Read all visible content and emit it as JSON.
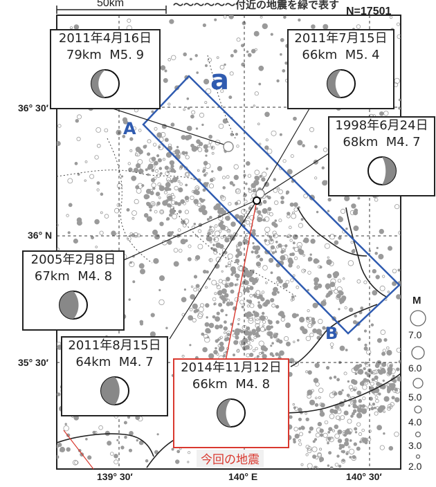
{
  "header": {
    "title": "〜〜〜〜〜〜付近の地震を緑で表す",
    "count": "N=17501",
    "scale_label": "50km"
  },
  "axes": {
    "lat_ticks": [
      "36° 30′",
      "36° N",
      "35° 30′"
    ],
    "lon_ticks": [
      "139° 30′",
      "140° E",
      "140° 30′"
    ]
  },
  "profile": {
    "area_label": "a",
    "start_label": "A",
    "end_label": "B"
  },
  "legend": {
    "title": "M",
    "magnitudes": [
      "7.0",
      "6.0",
      "5.0",
      "4.0",
      "3.0",
      "2.0"
    ]
  },
  "events": [
    {
      "date": "2011年4月16日",
      "depth": "79km",
      "mag": "M5. 9",
      "id": "ev-2011-04-16"
    },
    {
      "date": "2011年7月15日",
      "depth": "66km",
      "mag": "M5. 4",
      "id": "ev-2011-07-15"
    },
    {
      "date": "1998年6月24日",
      "depth": "68km",
      "mag": "M4. 7",
      "id": "ev-1998-06-24"
    },
    {
      "date": "2005年2月8日",
      "depth": "67km",
      "mag": "M4. 8",
      "id": "ev-2005-02-08"
    },
    {
      "date": "2011年8月15日",
      "depth": "64km",
      "mag": "M4. 7",
      "id": "ev-2011-08-15"
    },
    {
      "date": "2014年11月12日",
      "depth": "66km",
      "mag": "M4. 8",
      "id": "ev-2014-11-12",
      "highlight": true
    }
  ],
  "current_event_label": "今回の地震",
  "colors": {
    "frame": "#222222",
    "seismicity": "#9a9a9a",
    "profile_box": "#2f5bb0",
    "highlight": "#d9382e"
  }
}
